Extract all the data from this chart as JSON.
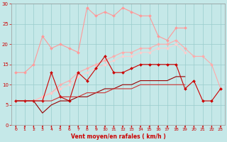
{
  "x": [
    0,
    1,
    2,
    3,
    4,
    5,
    6,
    7,
    8,
    9,
    10,
    11,
    12,
    13,
    14,
    15,
    16,
    17,
    18,
    19,
    20,
    21,
    22,
    23
  ],
  "bg_color": "#c5e8e8",
  "grid_color": "#99cccc",
  "series": [
    {
      "color": "#ff9999",
      "marker": true,
      "lw": 0.8,
      "y": [
        13,
        13,
        15,
        22,
        19,
        20,
        19,
        18,
        29,
        27,
        28,
        27,
        29,
        28,
        27,
        27,
        22,
        21,
        24,
        24,
        null,
        null,
        null,
        null
      ]
    },
    {
      "color": "#ffaaaa",
      "marker": true,
      "lw": 0.8,
      "y": [
        6,
        6,
        6,
        7,
        8,
        10,
        11,
        13,
        14,
        15,
        16,
        17,
        18,
        18,
        19,
        19,
        20,
        20,
        21,
        19,
        17,
        17,
        15,
        9
      ]
    },
    {
      "color": "#ffcccc",
      "marker": true,
      "lw": 0.7,
      "y": [
        6,
        6,
        6,
        7,
        8,
        9,
        10,
        12,
        13,
        14,
        15,
        16,
        17,
        17,
        18,
        18,
        19,
        19,
        20,
        18,
        null,
        null,
        null,
        null
      ]
    },
    {
      "color": "#cc0000",
      "marker": true,
      "lw": 0.8,
      "y": [
        6,
        6,
        6,
        6,
        13,
        7,
        6,
        13,
        11,
        14,
        17,
        13,
        13,
        14,
        15,
        15,
        15,
        15,
        15,
        9,
        11,
        6,
        6,
        9
      ]
    },
    {
      "color": "#990000",
      "marker": false,
      "lw": 0.8,
      "y": [
        6,
        6,
        6,
        3,
        5,
        6,
        6,
        7,
        7,
        8,
        9,
        9,
        10,
        10,
        11,
        11,
        11,
        11,
        12,
        12,
        null,
        null,
        6,
        null
      ]
    },
    {
      "color": "#cc3333",
      "marker": false,
      "lw": 0.8,
      "y": [
        6,
        6,
        6,
        6,
        6,
        7,
        7,
        7,
        8,
        8,
        8,
        9,
        9,
        9,
        10,
        10,
        10,
        10,
        10,
        10,
        null,
        null,
        6,
        null
      ]
    }
  ],
  "xlabel": "Vent moyen/en rafales ( km/h )",
  "xlim": [
    -0.5,
    23.5
  ],
  "ylim": [
    0,
    30
  ],
  "yticks": [
    0,
    5,
    10,
    15,
    20,
    25,
    30
  ],
  "xticks": [
    0,
    1,
    2,
    3,
    4,
    5,
    6,
    7,
    8,
    9,
    10,
    11,
    12,
    13,
    14,
    15,
    16,
    17,
    18,
    19,
    20,
    21,
    22,
    23
  ],
  "tick_color": "#cc0000",
  "label_color": "#cc0000"
}
